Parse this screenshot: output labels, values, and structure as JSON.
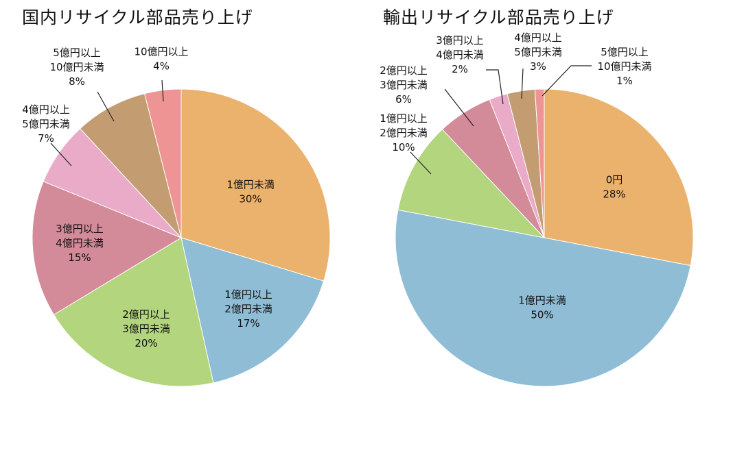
{
  "chart_data": [
    {
      "type": "pie",
      "title": "国内リサイクル部品売り上げ",
      "start_angle_deg": 0,
      "direction": "clockwise",
      "slices": [
        {
          "label": [
            "1億円未満"
          ],
          "value": 30,
          "value_label": "30%",
          "color": "#ebb26d"
        },
        {
          "label": [
            "1億円以上",
            "2億円未満"
          ],
          "value": 17,
          "value_label": "17%",
          "color": "#8ebdd5"
        },
        {
          "label": [
            "2億円以上",
            "3億円未満"
          ],
          "value": 20,
          "value_label": "20%",
          "color": "#b2d57e"
        },
        {
          "label": [
            "3億円以上",
            "4億円未満"
          ],
          "value": 15,
          "value_label": "15%",
          "color": "#d38a99"
        },
        {
          "label": [
            "4億円以上",
            "5億円未満"
          ],
          "value": 7,
          "value_label": "7%",
          "color": "#e9abc7"
        },
        {
          "label": [
            "5億円以上",
            "10億円未満"
          ],
          "value": 8,
          "value_label": "8%",
          "color": "#c49c72"
        },
        {
          "label": [
            "10億円以上"
          ],
          "value": 4,
          "value_label": "4%",
          "color": "#ef9494"
        }
      ]
    },
    {
      "type": "pie",
      "title": "輸出リサイクル部品売り上げ",
      "start_angle_deg": 0,
      "direction": "clockwise",
      "slices": [
        {
          "label": [
            "0円"
          ],
          "value": 28,
          "value_label": "28%",
          "color": "#ebb26d"
        },
        {
          "label": [
            "1億円未満"
          ],
          "value": 50,
          "value_label": "50%",
          "color": "#8ebdd5"
        },
        {
          "label": [
            "1億円以上",
            "2億円未満"
          ],
          "value": 10,
          "value_label": "10%",
          "color": "#b2d57e"
        },
        {
          "label": [
            "2億円以上",
            "3億円未満"
          ],
          "value": 6,
          "value_label": "6%",
          "color": "#d38a99"
        },
        {
          "label": [
            "3億円以上",
            "4億円未満"
          ],
          "value": 2,
          "value_label": "2%",
          "color": "#e9abc7"
        },
        {
          "label": [
            "4億円以上",
            "5億円未満"
          ],
          "value": 3,
          "value_label": "3%",
          "color": "#c49c72"
        },
        {
          "label": [
            "5億円以上",
            "10億円未満"
          ],
          "value": 1,
          "value_label": "1%",
          "color": "#ef9494"
        }
      ]
    }
  ]
}
